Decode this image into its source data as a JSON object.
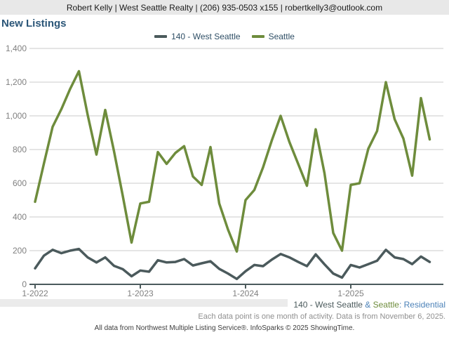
{
  "header": {
    "contact_line": "Robert Kelly | West Seattle Realty | (206) 935-0503 x155 | robertkelly3@outlook.com"
  },
  "title": "New Listings",
  "legend": [
    {
      "label": "140 - West Seattle",
      "color": "#4b5a5c"
    },
    {
      "label": "Seattle",
      "color": "#6e8c3c"
    }
  ],
  "chart_data": {
    "type": "line",
    "title": "New Listings",
    "x_unit": "month",
    "x_start": "1-2022",
    "x_end": "10-2025",
    "x_tick_labels": [
      "1-2022",
      "1-2023",
      "1-2024",
      "1-2025"
    ],
    "ylim": [
      0,
      1400
    ],
    "y_tick_step": 200,
    "y_tick_values": [
      0,
      200,
      400,
      600,
      800,
      1000,
      1200,
      1400
    ],
    "y_tick_labels": [
      "0",
      "200",
      "400",
      "600",
      "800",
      "1,000",
      "1,200",
      "1,400"
    ],
    "grid": "horizontal",
    "legend_position": "top-center",
    "series": [
      {
        "name": "140 - West Seattle",
        "color": "#4b5a5c",
        "values": [
          95,
          170,
          205,
          185,
          200,
          210,
          160,
          130,
          160,
          110,
          90,
          48,
          82,
          75,
          143,
          130,
          133,
          150,
          112,
          125,
          137,
          92,
          64,
          32,
          78,
          115,
          108,
          147,
          180,
          160,
          133,
          108,
          178,
          119,
          64,
          40,
          115,
          100,
          120,
          140,
          205,
          160,
          150,
          120,
          165,
          133
        ]
      },
      {
        "name": "Seattle",
        "color": "#6e8c3c",
        "values": [
          490,
          715,
          935,
          1040,
          1160,
          1265,
          1005,
          770,
          1035,
          790,
          525,
          248,
          480,
          490,
          785,
          715,
          780,
          820,
          640,
          590,
          815,
          480,
          325,
          195,
          500,
          560,
          695,
          855,
          1000,
          845,
          715,
          585,
          920,
          660,
          305,
          200,
          590,
          600,
          805,
          910,
          1200,
          980,
          865,
          645,
          1105,
          860
        ]
      }
    ]
  },
  "axis_colors": {
    "grid": "#cbcbcb",
    "axis": "#4b5a5c",
    "tick_label": "#808080"
  },
  "footer": {
    "line1_segments": [
      {
        "text": "140 - West Seattle ",
        "color": "#4b5a5c"
      },
      {
        "text": "& ",
        "color": "#4c82b8"
      },
      {
        "text": "Seattle",
        "color": "#6e8c3c"
      },
      {
        "text": ": Residential",
        "color": "#4c82b8"
      }
    ],
    "line2": "Each data point is one month of activity. Data is from November 6, 2025.",
    "line3": "All data from Northwest Multiple Listing Service®. InfoSparks © 2025 ShowingTime."
  }
}
